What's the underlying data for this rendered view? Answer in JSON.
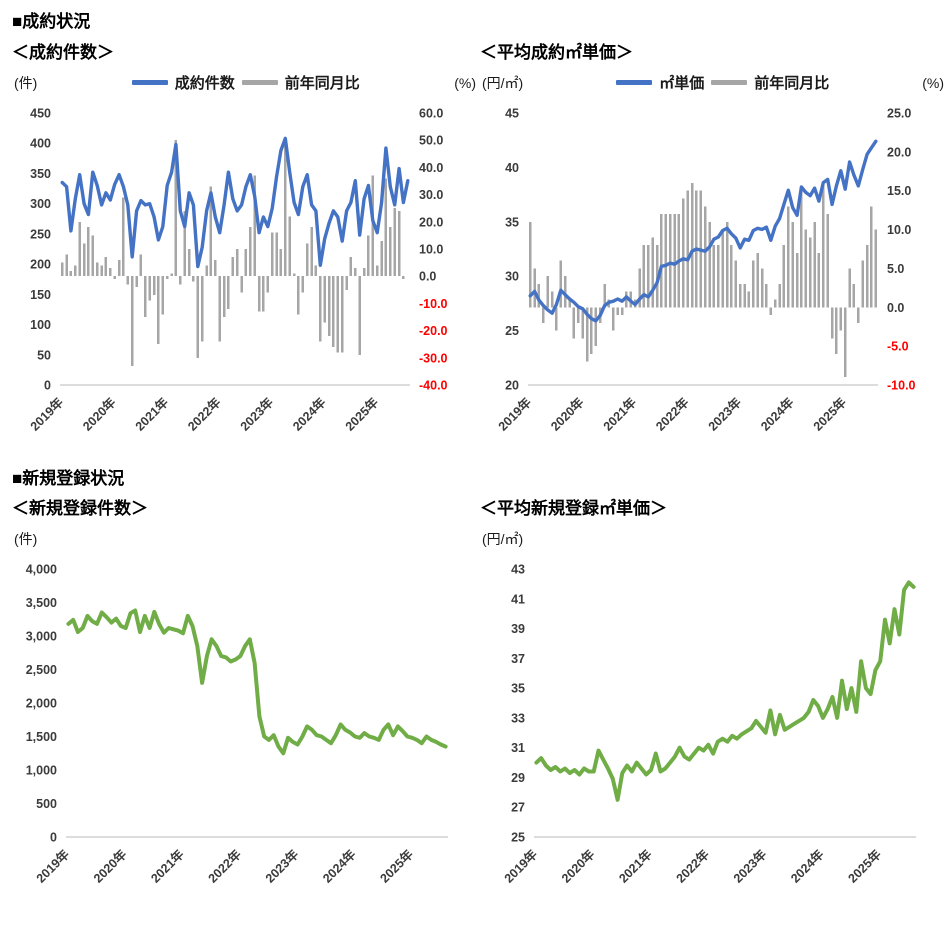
{
  "sections": [
    {
      "title": "■成約状況"
    },
    {
      "title": "■新規登録状況"
    }
  ],
  "colors": {
    "line_blue": "#4472C4",
    "line_green": "#70AD47",
    "bar_gray": "#A6A6A6",
    "tick_text": "#3b3b3b",
    "negative_tick": "#FF0000",
    "axis_line": "#d0d0d0"
  },
  "chart_data": [
    {
      "id": "contract-count",
      "type": "line+bar",
      "title": "＜成約件数＞",
      "left_unit": "(件)",
      "right_unit": "(%)",
      "legend": [
        {
          "label": "成約件数",
          "kind": "line",
          "color": "#4472C4"
        },
        {
          "label": "前年同月比",
          "kind": "bar",
          "color": "#A6A6A6"
        }
      ],
      "x_labels": [
        "2019年",
        "2020年",
        "2021年",
        "2022年",
        "2023年",
        "2024年",
        "2025年"
      ],
      "left_axis": {
        "min": 0,
        "max": 450,
        "step": 50,
        "comma": false
      },
      "right_axis": {
        "min": -40,
        "max": 60,
        "step": 10
      },
      "line_color": "#4472C4",
      "bar_color": "#A6A6A6",
      "line_values": [
        335,
        328,
        255,
        308,
        348,
        300,
        282,
        352,
        330,
        298,
        318,
        306,
        332,
        348,
        328,
        298,
        212,
        288,
        305,
        298,
        300,
        278,
        240,
        262,
        330,
        352,
        398,
        288,
        262,
        318,
        298,
        196,
        228,
        288,
        318,
        278,
        252,
        298,
        352,
        308,
        288,
        298,
        328,
        348,
        312,
        252,
        278,
        262,
        292,
        345,
        388,
        408,
        352,
        302,
        282,
        328,
        348,
        298,
        288,
        198,
        242,
        268,
        288,
        278,
        238,
        288,
        302,
        338,
        248,
        308,
        330,
        272,
        252,
        302,
        392,
        328,
        298,
        358,
        302,
        338
      ],
      "bar_values": [
        5,
        8,
        2,
        4,
        20,
        12,
        18,
        15,
        5,
        4,
        7,
        3,
        -1,
        6,
        29,
        -3,
        -33,
        -4,
        8,
        -15,
        -9,
        -7,
        -25,
        -14,
        -1,
        1,
        50,
        -3,
        24,
        10,
        -2,
        -30,
        -24,
        4,
        33,
        6,
        -24,
        -15,
        -12,
        7,
        10,
        -6,
        10,
        18,
        37,
        -13,
        -13,
        -6,
        16,
        16,
        10,
        51,
        22,
        1,
        -14,
        -6,
        12,
        18,
        4,
        -24,
        -17,
        -22,
        -26,
        -28,
        -28,
        -5,
        7,
        3,
        -29,
        3,
        15,
        37,
        4,
        13,
        36,
        18,
        25,
        24,
        -1,
        0
      ]
    },
    {
      "id": "contract-unit-price",
      "type": "line+bar",
      "title": "＜平均成約㎡単価＞",
      "left_unit": "(円/㎡)",
      "right_unit": "(%)",
      "legend": [
        {
          "label": "㎡単価",
          "kind": "line",
          "color": "#4472C4"
        },
        {
          "label": "前年同月比",
          "kind": "bar",
          "color": "#A6A6A6"
        }
      ],
      "x_labels": [
        "2019年",
        "2020年",
        "2021年",
        "2022年",
        "2023年",
        "2024年",
        "2025年"
      ],
      "left_axis": {
        "min": 20,
        "max": 45,
        "step": 5,
        "comma": false
      },
      "right_axis": {
        "min": -10,
        "max": 25,
        "step": 5
      },
      "line_color": "#4472C4",
      "bar_color": "#A6A6A6",
      "line_values": [
        28.2,
        28.6,
        27.8,
        27.3,
        26.9,
        26.6,
        27.4,
        28.7,
        28.3,
        27.9,
        27.6,
        27.2,
        27.0,
        26.5,
        26.1,
        25.9,
        26.4,
        27.3,
        27.6,
        27.7,
        27.9,
        27.7,
        28.1,
        27.7,
        27.4,
        27.9,
        28.3,
        28.1,
        28.7,
        29.4,
        30.9,
        31.0,
        31.2,
        31.1,
        31.4,
        31.6,
        31.5,
        32.3,
        32.5,
        32.4,
        32.3,
        32.7,
        33.4,
        33.6,
        34.2,
        34.4,
        33.9,
        33.5,
        32.6,
        33.4,
        33.3,
        34.2,
        34.4,
        34.3,
        34.5,
        33.3,
        34.6,
        35.3,
        36.6,
        37.9,
        36.3,
        35.6,
        38.2,
        37.7,
        37.4,
        38.1,
        36.9,
        38.6,
        38.9,
        36.6,
        38.3,
        39.7,
        38.0,
        40.5,
        39.3,
        38.3,
        39.8,
        41.2,
        41.8,
        42.4
      ],
      "bar_values": [
        11,
        5,
        3,
        -2,
        4,
        2,
        -3,
        6,
        4,
        1,
        -4,
        -2,
        -4,
        -7,
        -6,
        -5,
        -2,
        3,
        1,
        -3,
        -1,
        -1,
        2,
        2,
        1,
        5,
        8,
        8,
        9,
        8,
        12,
        12,
        12,
        12,
        12,
        14,
        15,
        16,
        15,
        15,
        13,
        11,
        8,
        8,
        10,
        11,
        8,
        6,
        3,
        3,
        2,
        6,
        7,
        5,
        3,
        -1,
        1,
        3,
        8,
        13,
        11,
        7,
        15,
        10,
        9,
        11,
        7,
        16,
        12,
        -4,
        -6,
        -3,
        -9,
        5,
        3,
        -2,
        6,
        8,
        13,
        10
      ]
    },
    {
      "id": "new-listing-count",
      "type": "line",
      "title": "＜新規登録件数＞",
      "left_unit": "(件)",
      "x_labels": [
        "2019年",
        "2020年",
        "2021年",
        "2022年",
        "2023年",
        "2024年",
        "2025年"
      ],
      "left_axis": {
        "min": 0,
        "max": 4000,
        "step": 500,
        "comma": true
      },
      "line_color": "#70AD47",
      "line_values": [
        3180,
        3240,
        3060,
        3120,
        3300,
        3220,
        3180,
        3350,
        3280,
        3200,
        3260,
        3150,
        3120,
        3340,
        3380,
        3060,
        3300,
        3120,
        3360,
        3180,
        3050,
        3120,
        3100,
        3080,
        3040,
        3300,
        3150,
        2850,
        2300,
        2700,
        2950,
        2850,
        2700,
        2680,
        2620,
        2650,
        2700,
        2850,
        2950,
        2600,
        1800,
        1500,
        1450,
        1520,
        1350,
        1250,
        1480,
        1420,
        1380,
        1500,
        1650,
        1600,
        1520,
        1500,
        1450,
        1400,
        1520,
        1680,
        1600,
        1560,
        1500,
        1480,
        1550,
        1500,
        1480,
        1450,
        1600,
        1680,
        1520,
        1650,
        1580,
        1500,
        1480,
        1450,
        1400,
        1500,
        1450,
        1420,
        1380,
        1350
      ]
    },
    {
      "id": "new-listing-unit-price",
      "type": "line",
      "title": "＜平均新規登録㎡単価＞",
      "left_unit": "(円/㎡)",
      "x_labels": [
        "2019年",
        "2020年",
        "2021年",
        "2022年",
        "2023年",
        "2024年",
        "2025年"
      ],
      "left_axis": {
        "min": 25,
        "max": 43,
        "step": 2,
        "comma": false
      },
      "line_color": "#70AD47",
      "line_values": [
        30.0,
        30.3,
        29.8,
        29.5,
        29.7,
        29.4,
        29.6,
        29.3,
        29.5,
        29.2,
        29.6,
        29.4,
        29.4,
        30.8,
        30.2,
        29.6,
        28.9,
        27.5,
        29.3,
        29.8,
        29.4,
        30.0,
        29.6,
        29.2,
        29.5,
        30.6,
        29.4,
        29.6,
        30.0,
        30.4,
        31.0,
        30.4,
        30.2,
        30.6,
        31.0,
        30.8,
        31.2,
        30.6,
        31.4,
        31.6,
        31.4,
        31.8,
        31.6,
        31.9,
        32.1,
        32.3,
        32.8,
        32.4,
        32.0,
        33.5,
        31.9,
        33.2,
        32.2,
        32.4,
        32.6,
        32.8,
        33.0,
        33.4,
        34.2,
        33.8,
        33.0,
        33.6,
        34.4,
        33.0,
        35.5,
        33.6,
        35.0,
        33.4,
        36.8,
        35.0,
        34.6,
        36.2,
        36.8,
        39.6,
        38.0,
        40.3,
        38.6,
        41.6,
        42.1,
        41.8
      ]
    }
  ]
}
